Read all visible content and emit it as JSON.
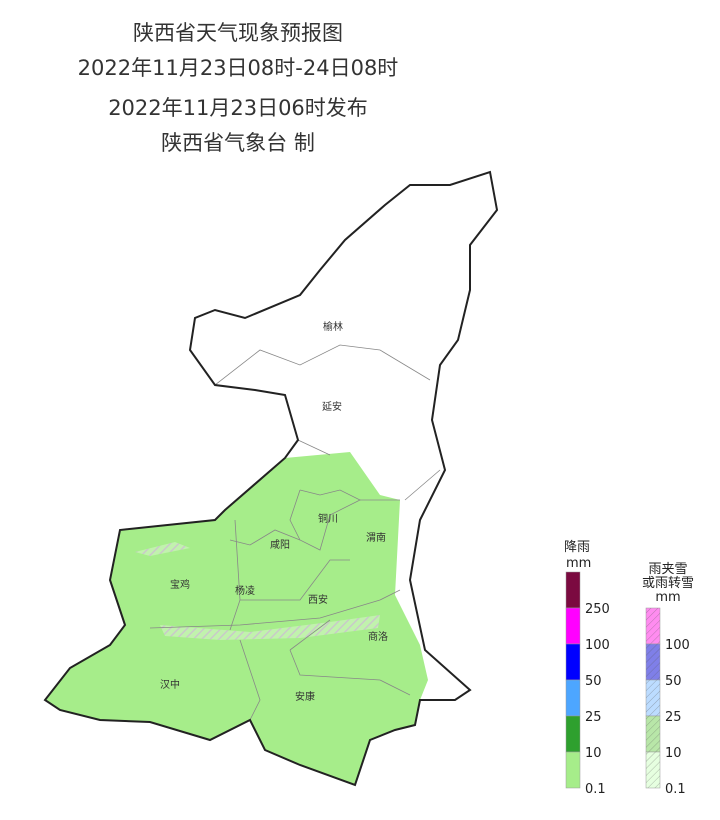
{
  "header": {
    "title": "陕西省天气现象预报图",
    "period": "2022年11月23日08时-24日08时",
    "issued": "2022年11月23日06时发布",
    "issuer": "陕西省气象台 制"
  },
  "cities": [
    {
      "label": "榆林"
    },
    {
      "label": "延安"
    },
    {
      "label": "铜川"
    },
    {
      "label": "渭南"
    },
    {
      "label": "咸阳"
    },
    {
      "label": "宝鸡"
    },
    {
      "label": "杨凌"
    },
    {
      "label": "西安"
    },
    {
      "label": "商洛"
    },
    {
      "label": "汉中"
    },
    {
      "label": "安康"
    }
  ],
  "legend": {
    "rain": {
      "title": "降雨",
      "unit": "mm",
      "ticks": [
        "250",
        "100",
        "50",
        "25",
        "10",
        "0.1"
      ],
      "colors": [
        "#7b0a40",
        "#ff00ff",
        "#0000ff",
        "#4da6ff",
        "#2ea02e",
        "#a6ed8a"
      ]
    },
    "sleet": {
      "title": [
        "雨夹雪",
        "或雨转雪"
      ],
      "unit": "mm",
      "ticks": [
        "100",
        "50",
        "25",
        "10",
        "0.1"
      ],
      "colors": [
        "#ff8cf0",
        "#7f7fe8",
        "#bcdcff",
        "#b8e6a8",
        "#e6ffe0"
      ]
    }
  }
}
